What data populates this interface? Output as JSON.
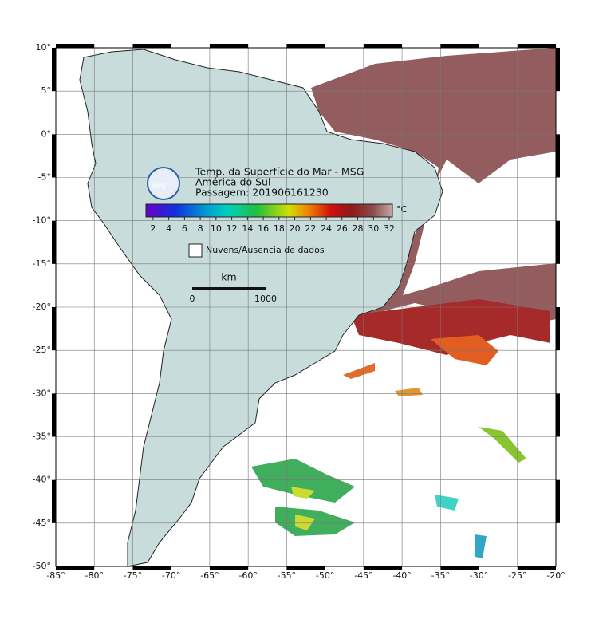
{
  "map": {
    "lonlim": [
      -85,
      -20
    ],
    "latlim": [
      -50,
      10
    ],
    "lonticks": [
      {
        "value": -85,
        "label": "-85°"
      },
      {
        "value": -80,
        "label": "-80°"
      },
      {
        "value": -75,
        "label": "-75°"
      },
      {
        "value": -70,
        "label": "-70°"
      },
      {
        "value": -65,
        "label": "-65°"
      },
      {
        "value": -60,
        "label": "-60°"
      },
      {
        "value": -55,
        "label": "-55°"
      },
      {
        "value": -50,
        "label": "-50°"
      },
      {
        "value": -45,
        "label": "-45°"
      },
      {
        "value": -40,
        "label": "-40°"
      },
      {
        "value": -35,
        "label": "-35°"
      },
      {
        "value": -30,
        "label": "-30°"
      },
      {
        "value": -25,
        "label": "-25°"
      },
      {
        "value": -20,
        "label": "-20°"
      }
    ],
    "latticks": [
      {
        "value": 10,
        "label": "10°"
      },
      {
        "value": 5,
        "label": "5°"
      },
      {
        "value": 0,
        "label": "0°"
      },
      {
        "value": -5,
        "label": "-5°"
      },
      {
        "value": -10,
        "label": "-10°"
      },
      {
        "value": -15,
        "label": "-15°"
      },
      {
        "value": -20,
        "label": "-20°"
      },
      {
        "value": -25,
        "label": "-25°"
      },
      {
        "value": -30,
        "label": "-30°"
      },
      {
        "value": -35,
        "label": "-35°"
      },
      {
        "value": -40,
        "label": "-40°"
      },
      {
        "value": -45,
        "label": "-45°"
      },
      {
        "value": -50,
        "label": "-50°"
      }
    ]
  },
  "legend": {
    "logo": "INPE",
    "title": [
      "Temp. da Superfície do Mar - MSG",
      "América do Sul",
      "Passagem: 201906161230"
    ],
    "colorbar": {
      "unit": "°C",
      "lim": [
        1.1,
        32.4
      ],
      "ticks": [
        2,
        4,
        6,
        8,
        10,
        12,
        14,
        16,
        18,
        20,
        22,
        24,
        26,
        28,
        30,
        32
      ]
    },
    "no_data": "Nuvens/Ausencia de dados",
    "scale": {
      "unit": "km",
      "labels": [
        "0",
        "1000"
      ]
    }
  }
}
